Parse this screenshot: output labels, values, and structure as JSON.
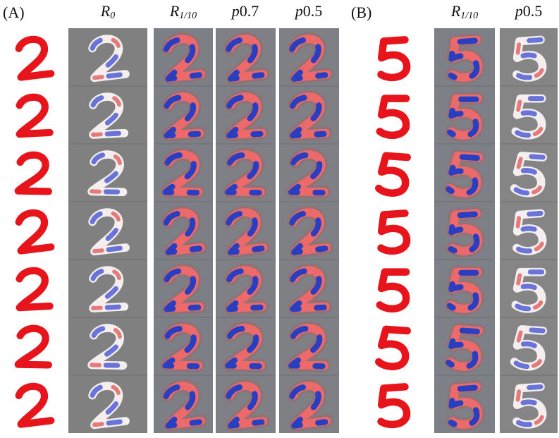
{
  "panel_a": {
    "label": "(A)",
    "columns": [
      {
        "main": "R",
        "sub": "0"
      },
      {
        "main": "R",
        "sub": "1/10"
      },
      {
        "main": "p",
        "rest": "0.7"
      },
      {
        "main": "p",
        "rest": "0.5"
      }
    ]
  },
  "panel_b": {
    "label": "(B)",
    "columns": [
      {
        "main": "R",
        "sub": "1/10"
      },
      {
        "main": "p",
        "rest": "0.5"
      }
    ]
  }
}
